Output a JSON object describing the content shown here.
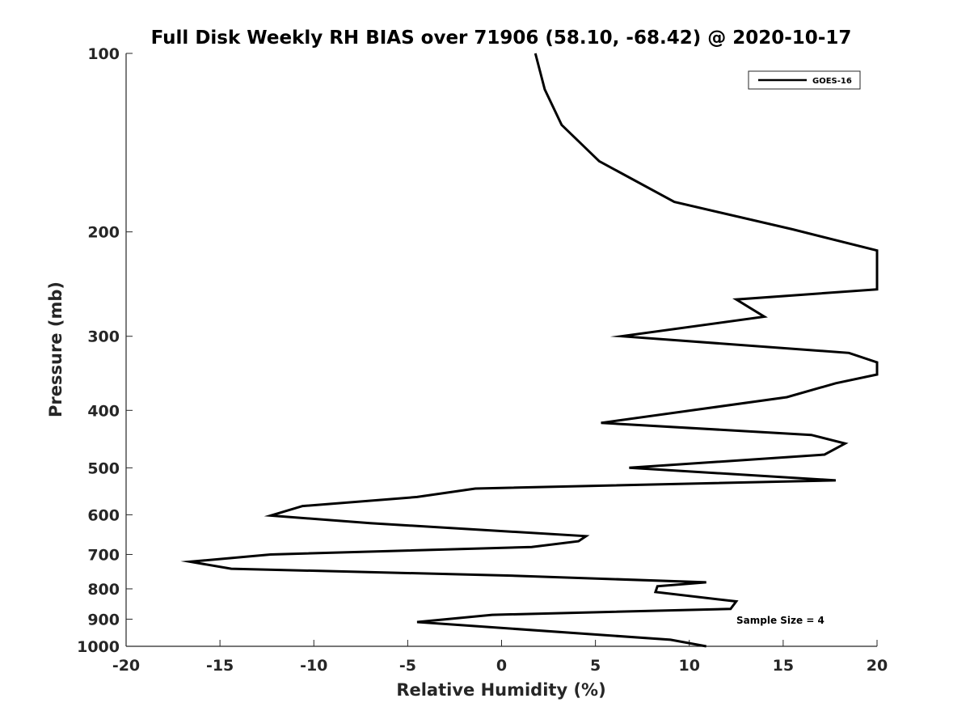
{
  "chart_data": {
    "type": "line",
    "title": "Full Disk Weekly RH BIAS over 71906 (58.10, -68.42) @ 2020-10-17",
    "xlabel": "Relative Humidity (%)",
    "ylabel": "Pressure (mb)",
    "xlim": [
      -20,
      20
    ],
    "ylim": [
      100,
      1000
    ],
    "y_scale": "log",
    "y_reversed": true,
    "x_ticks": [
      -20,
      -15,
      -10,
      -5,
      0,
      5,
      10,
      15,
      20
    ],
    "x_tick_labels": [
      "-20",
      "-15",
      "-10",
      "-5",
      "0",
      "5",
      "10",
      "15",
      "20"
    ],
    "y_ticks": [
      100,
      200,
      300,
      400,
      500,
      600,
      700,
      800,
      900,
      1000
    ],
    "y_tick_labels": [
      "100",
      "200",
      "300",
      "400",
      "500",
      "600",
      "700",
      "800",
      "900",
      "1000"
    ],
    "grid": false,
    "legend_position": "top-right",
    "annotation": "Sample Size = 4",
    "series": [
      {
        "name": "GOES-16",
        "color": "#000000",
        "points": [
          [
            1.8,
            100
          ],
          [
            2.3,
            115
          ],
          [
            3.2,
            132
          ],
          [
            5.2,
            152
          ],
          [
            9.2,
            178
          ],
          [
            15.5,
            198
          ],
          [
            20,
            215
          ],
          [
            20,
            250
          ],
          [
            12.5,
            260
          ],
          [
            14.0,
            278
          ],
          [
            6.4,
            300
          ],
          [
            18.5,
            320
          ],
          [
            20,
            332
          ],
          [
            20,
            348
          ],
          [
            17.8,
            360
          ],
          [
            15.2,
            380
          ],
          [
            5.3,
            420
          ],
          [
            16.5,
            440
          ],
          [
            18.3,
            455
          ],
          [
            17.2,
            475
          ],
          [
            6.8,
            500
          ],
          [
            17.8,
            525
          ],
          [
            -1.4,
            542
          ],
          [
            -4.5,
            560
          ],
          [
            -10.6,
            580
          ],
          [
            -12.3,
            602
          ],
          [
            -7.0,
            620
          ],
          [
            4.5,
            652
          ],
          [
            4.1,
            665
          ],
          [
            1.6,
            680
          ],
          [
            -12.3,
            700
          ],
          [
            -16.6,
            720
          ],
          [
            -14.4,
            740
          ],
          [
            0.5,
            760
          ],
          [
            10.9,
            780
          ],
          [
            8.3,
            792
          ],
          [
            8.2,
            810
          ],
          [
            12.5,
            840
          ],
          [
            12.2,
            865
          ],
          [
            -0.5,
            885
          ],
          [
            -4.5,
            910
          ],
          [
            9.0,
            975
          ],
          [
            10.9,
            1000
          ]
        ]
      }
    ]
  }
}
